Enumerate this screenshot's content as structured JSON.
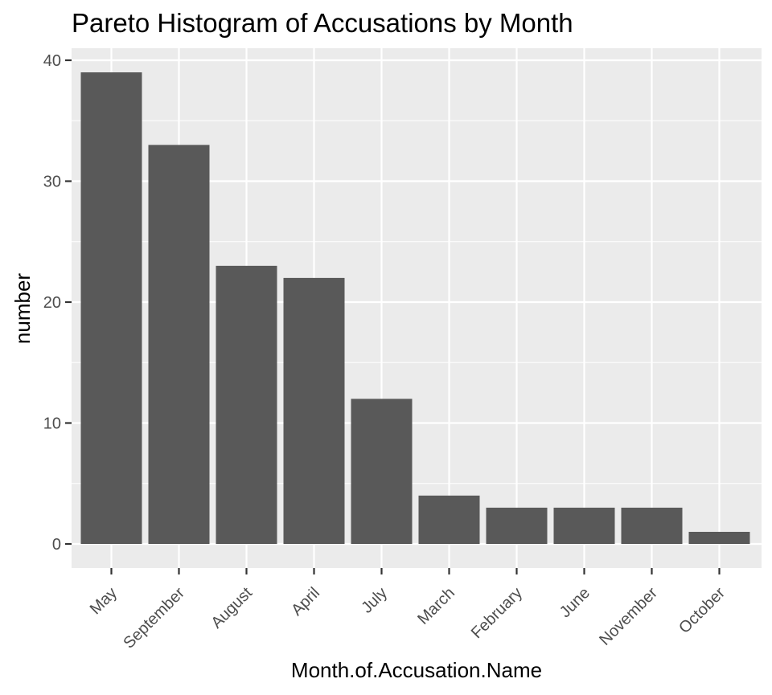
{
  "chart_data": {
    "type": "bar",
    "title": "Pareto Histogram of Accusations by Month",
    "xlabel": "Month.of.Accusation.Name",
    "ylabel": "number",
    "categories": [
      "May",
      "September",
      "August",
      "April",
      "July",
      "March",
      "February",
      "June",
      "November",
      "October"
    ],
    "values": [
      39,
      33,
      23,
      22,
      12,
      4,
      3,
      3,
      3,
      1
    ],
    "ylim": [
      0,
      40
    ],
    "yticks": [
      0,
      10,
      20,
      30,
      40
    ],
    "ytick_labels": [
      "0",
      "10",
      "20",
      "30",
      "40"
    ],
    "grid": true,
    "x_tick_rotation": 45,
    "colors": {
      "bar": "#595959",
      "panel": "#ebebeb",
      "grid": "#ffffff"
    }
  }
}
